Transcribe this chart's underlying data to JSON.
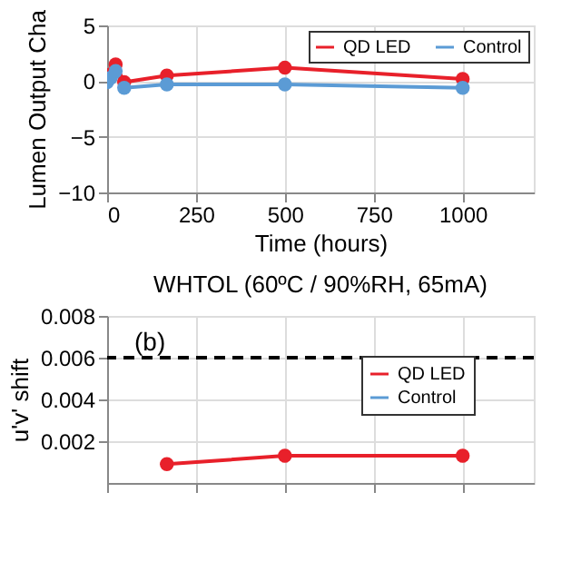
{
  "chart_data": [
    {
      "type": "line",
      "xlabel": "Time (hours)",
      "ylabel": "Lumen Output Cha",
      "xlim": [
        0,
        1200
      ],
      "xticks": [
        0,
        250,
        500,
        750,
        1000
      ],
      "ylim": [
        -10,
        5
      ],
      "yticks": [
        -10,
        -5,
        0,
        5
      ],
      "grid": true,
      "legend": "top right",
      "marker": "circle",
      "line_style": "solid",
      "x": [
        0,
        10,
        24,
        48,
        168,
        500,
        1000
      ],
      "series": [
        {
          "name": "QD LED",
          "color": "#e8202a",
          "values": [
            0.3,
            0.6,
            1.5,
            -0.1,
            0.5,
            1.2,
            0.2
          ]
        },
        {
          "name": "Control",
          "color": "#5b9bd5",
          "values": [
            -0.1,
            0.3,
            0.9,
            -0.6,
            -0.3,
            -0.3,
            -0.6
          ]
        }
      ]
    },
    {
      "type": "line",
      "title": "WHTOL (60ºC / 90%RH, 65mA)",
      "ylabel": "u'v' shift",
      "xlim": [
        0,
        1200
      ],
      "xticks": [
        0,
        250,
        500,
        750,
        1000
      ],
      "ylim": [
        0,
        0.008
      ],
      "yticks": [
        0.002,
        0.004,
        0.006,
        0.008
      ],
      "grid": true,
      "legend": "right",
      "marker": "circle",
      "line_style": "solid",
      "tick_labels": "y",
      "annotations": [
        "(b)"
      ],
      "ref_lines": [
        {
          "axis": "y",
          "value": 0.006,
          "color": "#000000",
          "line_style": "dashed"
        }
      ],
      "x": [
        168,
        500,
        1000
      ],
      "series": [
        {
          "name": "QD LED",
          "color": "#e8202a",
          "values": [
            0.0009,
            0.0013,
            0.0013
          ]
        },
        {
          "name": "Control",
          "color": "#5b9bd5",
          "values": [
            null,
            null,
            null
          ]
        }
      ]
    }
  ]
}
